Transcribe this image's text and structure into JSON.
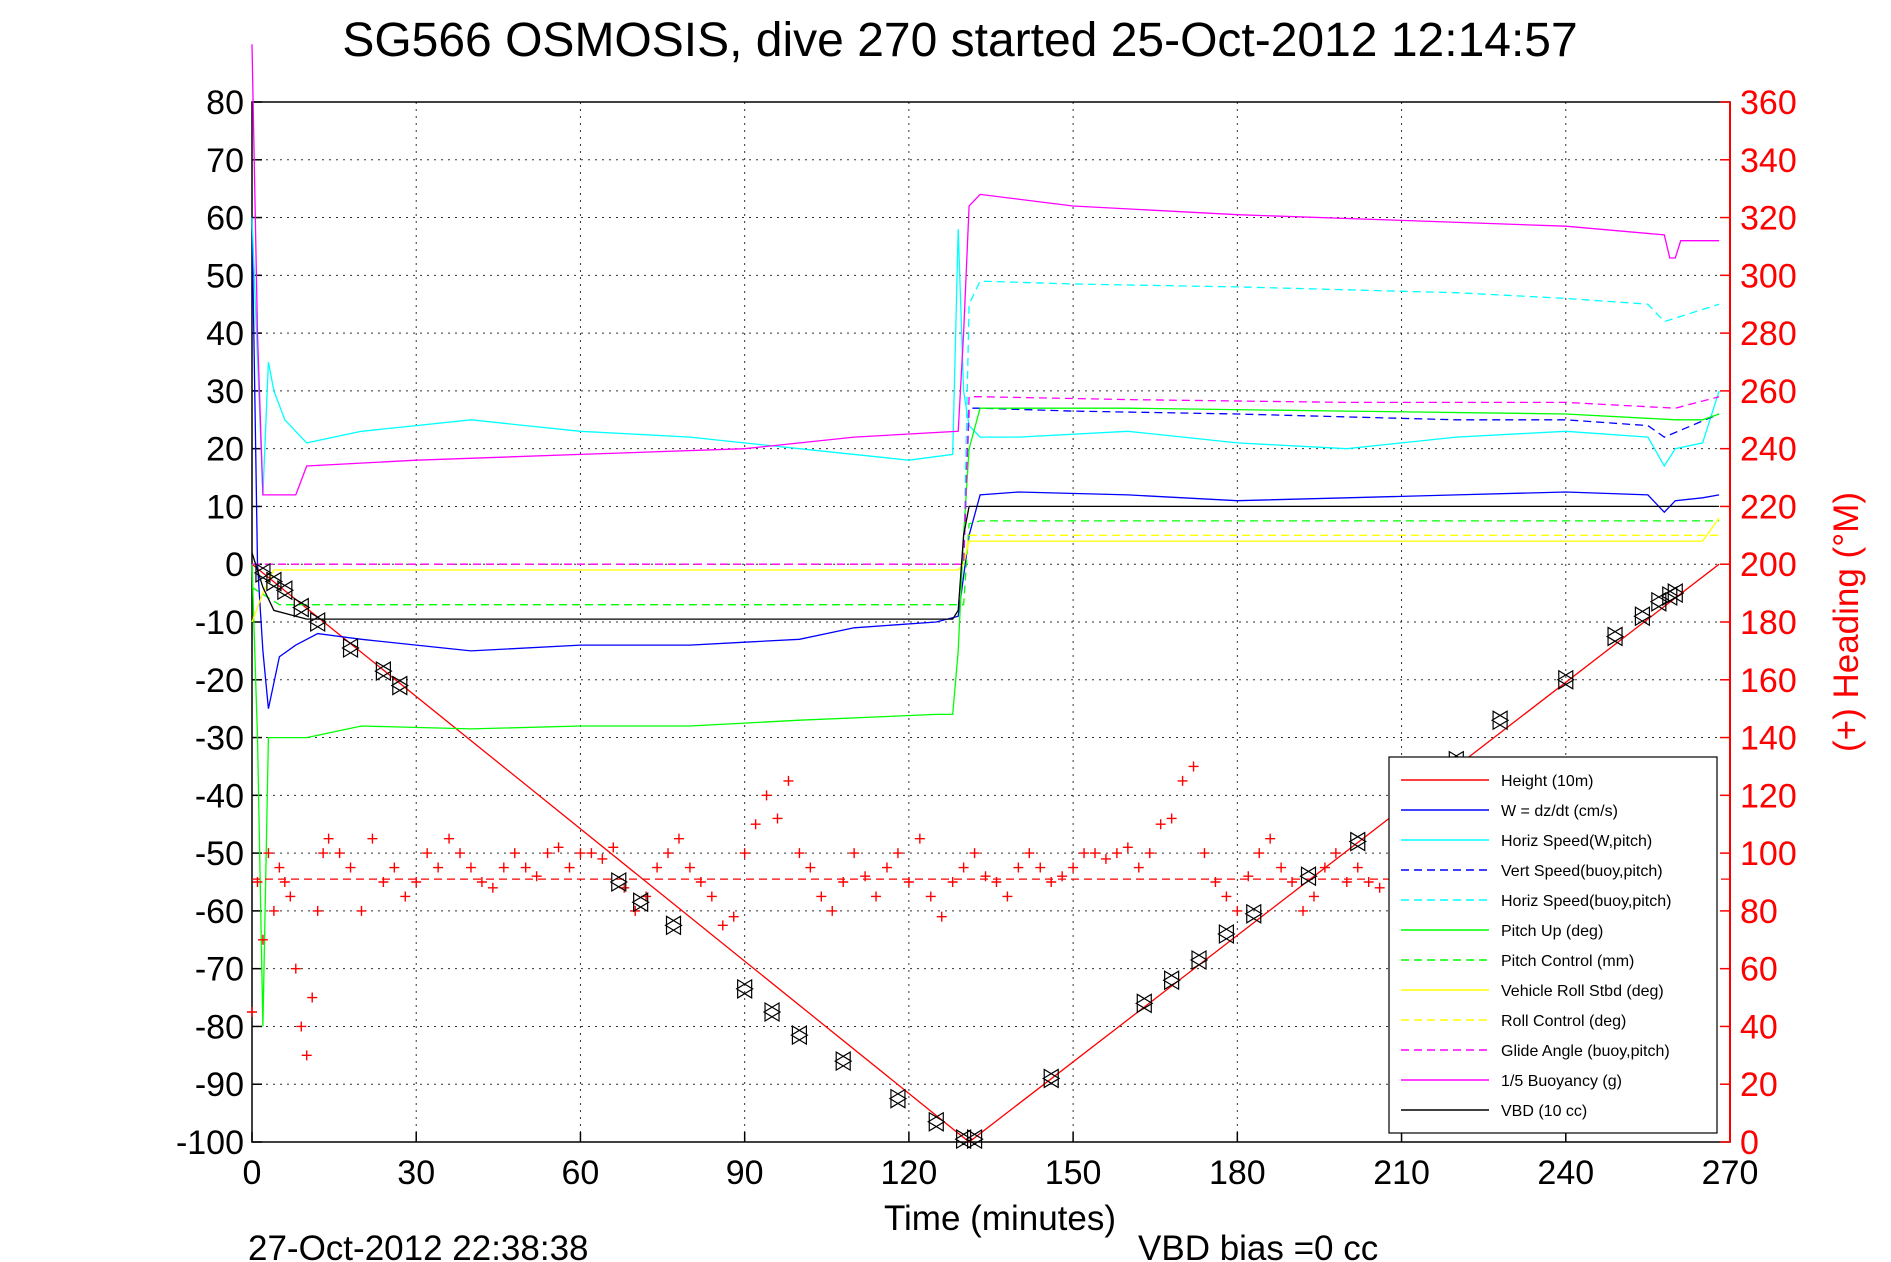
{
  "chart_data": {
    "type": "line",
    "title": "SG566 OSMOSIS, dive 270 started 25-Oct-2012 12:14:57",
    "xlabel": "Time (minutes)",
    "ylabel": "",
    "y2label": "(+) Heading (°M)",
    "xlim": [
      0,
      270
    ],
    "ylim": [
      -100,
      80
    ],
    "y2lim": [
      0,
      360
    ],
    "xticks": [
      "0",
      "30",
      "60",
      "90",
      "120",
      "150",
      "180",
      "210",
      "240",
      "270"
    ],
    "yticks": [
      "80",
      "70",
      "60",
      "50",
      "40",
      "30",
      "20",
      "10",
      "0",
      "-10",
      "-20",
      "-30",
      "-40",
      "-50",
      "-60",
      "-70",
      "-80",
      "-90",
      "-100"
    ],
    "y2ticks": [
      "360",
      "340",
      "320",
      "300",
      "280",
      "260",
      "240",
      "220",
      "200",
      "180",
      "160",
      "140",
      "120",
      "100",
      "80",
      "60",
      "40",
      "20",
      "0"
    ],
    "grid": true,
    "legend_position": "bottom-right",
    "footer_left": "27-Oct-2012 22:38:38",
    "footer_right": "VBD bias =0 cc",
    "series": [
      {
        "name": "Height (10m)",
        "color": "#ff0000",
        "style": "solid",
        "x": [
          0,
          131,
          268
        ],
        "y": [
          0,
          -100,
          0
        ]
      },
      {
        "name": "W = dz/dt (cm/s)",
        "color": "#0000ff",
        "style": "solid",
        "x": [
          0,
          1,
          2,
          3,
          5,
          8,
          12,
          20,
          30,
          40,
          60,
          80,
          90,
          100,
          110,
          125,
          129,
          131,
          133,
          140,
          160,
          180,
          200,
          220,
          240,
          255,
          258,
          260,
          265,
          268
        ],
        "y": [
          60,
          0,
          -15,
          -25,
          -16,
          -14,
          -12,
          -13,
          -14,
          -15,
          -14,
          -14,
          -13.5,
          -13,
          -11,
          -10,
          -9,
          5,
          12,
          12.5,
          12,
          11,
          11.5,
          12,
          12.5,
          12,
          9,
          11,
          11.5,
          12
        ]
      },
      {
        "name": "Horiz Speed(W,pitch)",
        "color": "#00ffff",
        "style": "solid",
        "x": [
          0,
          2,
          3,
          4,
          6,
          10,
          20,
          30,
          40,
          50,
          60,
          80,
          100,
          120,
          128,
          129,
          130,
          131,
          133,
          140,
          160,
          180,
          200,
          220,
          240,
          255,
          258,
          260,
          265,
          268
        ],
        "y": [
          60,
          12,
          35,
          30,
          25,
          21,
          23,
          24,
          25,
          24,
          23,
          22,
          20,
          18,
          19,
          58,
          30,
          24,
          22,
          22,
          23,
          21,
          20,
          22,
          23,
          22,
          17,
          20,
          21,
          30
        ]
      },
      {
        "name": "Vert Speed(buoy,pitch)",
        "color": "#0000ff",
        "style": "dashed",
        "x": [
          0,
          1,
          2,
          130,
          131,
          133,
          150,
          180,
          200,
          220,
          240,
          255,
          258,
          268
        ],
        "y": [
          0,
          0,
          0,
          0,
          27,
          27,
          26.5,
          26,
          25.5,
          25,
          25,
          24,
          22,
          26
        ]
      },
      {
        "name": "Horiz Speed(buoy,pitch)",
        "color": "#00ffff",
        "style": "dashed",
        "x": [
          0,
          130,
          131,
          133,
          150,
          180,
          200,
          220,
          240,
          255,
          258,
          268
        ],
        "y": [
          0,
          0,
          45,
          49,
          48.5,
          48,
          47.5,
          47,
          46,
          45,
          42,
          45
        ]
      },
      {
        "name": "Pitch Up (deg)",
        "color": "#00ff00",
        "style": "solid",
        "x": [
          0,
          1,
          2,
          3,
          5,
          10,
          20,
          40,
          60,
          80,
          100,
          125,
          128,
          129,
          130,
          131,
          133,
          160,
          200,
          240,
          260,
          265,
          268
        ],
        "y": [
          0,
          -30,
          -80,
          -30,
          -30,
          -30,
          -28,
          -28.5,
          -28,
          -28,
          -27,
          -26,
          -26,
          -15,
          5,
          20,
          27,
          27,
          26.5,
          26,
          25,
          25,
          26
        ]
      },
      {
        "name": "Pitch Control (mm)",
        "color": "#00ff00",
        "style": "dashed",
        "x": [
          0,
          5,
          10,
          30,
          60,
          100,
          129,
          130,
          131,
          133,
          160,
          200,
          240,
          268
        ],
        "y": [
          -4,
          -7,
          -7,
          -7,
          -7,
          -7,
          -7,
          -7,
          7,
          7.5,
          7.5,
          7.5,
          7.5,
          7.5
        ]
      },
      {
        "name": "Vehicle Roll Stbd (deg)",
        "color": "#ffff00",
        "style": "solid",
        "x": [
          0,
          2,
          4,
          10,
          40,
          80,
          120,
          129,
          130,
          131,
          133,
          160,
          200,
          240,
          265,
          268
        ],
        "y": [
          -10,
          -5,
          -1,
          -1,
          -1,
          -1,
          -1,
          -1,
          0,
          4,
          4,
          4,
          4,
          4,
          4,
          8
        ]
      },
      {
        "name": "Roll Control (deg)",
        "color": "#ffff00",
        "style": "dashed",
        "x": [
          0,
          10,
          40,
          80,
          129,
          130,
          131,
          133,
          160,
          200,
          240,
          268
        ],
        "y": [
          0,
          0,
          0,
          0,
          0,
          0,
          5,
          5,
          5,
          5,
          5,
          5
        ]
      },
      {
        "name": "Glide Angle (buoy,pitch)",
        "color": "#ff00ff",
        "style": "dashed",
        "x": [
          0,
          130,
          131,
          133,
          160,
          200,
          240,
          260,
          268
        ],
        "y": [
          0,
          0,
          29,
          29,
          28.5,
          28,
          28,
          27,
          29
        ]
      },
      {
        "name": "1/5 Buoyancy (g)",
        "color": "#ff00ff",
        "style": "solid",
        "x": [
          0,
          1,
          2,
          3,
          8,
          10,
          30,
          60,
          90,
          110,
          129,
          130,
          131,
          133,
          150,
          180,
          210,
          240,
          258,
          259,
          260,
          261,
          268
        ],
        "y": [
          90,
          40,
          12,
          12,
          12,
          17,
          18,
          19,
          20,
          22,
          23,
          40,
          62,
          64,
          62,
          60.5,
          59.5,
          58.5,
          57,
          53,
          53,
          56,
          56
        ]
      },
      {
        "name": "VBD (10 cc)",
        "color": "#000000",
        "style": "solid",
        "x": [
          0,
          2,
          4,
          10,
          30,
          60,
          100,
          128,
          129,
          130,
          131,
          133,
          160,
          200,
          240,
          268
        ],
        "y": [
          2,
          -4,
          -8,
          -9.5,
          -9.5,
          -9.5,
          -9.5,
          -9.5,
          -8,
          5,
          10,
          10,
          10,
          10,
          10,
          10
        ]
      }
    ],
    "heading": {
      "name": "Heading",
      "color": "#ff0000",
      "marker": "+",
      "mean": 91,
      "x": [
        0,
        1,
        2,
        3,
        4,
        5,
        6,
        7,
        8,
        9,
        10,
        11,
        12,
        13,
        14,
        16,
        18,
        20,
        22,
        24,
        26,
        28,
        30,
        32,
        34,
        36,
        38,
        40,
        42,
        44,
        46,
        48,
        50,
        52,
        54,
        56,
        58,
        60,
        62,
        64,
        66,
        68,
        70,
        72,
        74,
        76,
        78,
        80,
        82,
        84,
        86,
        88,
        90,
        92,
        94,
        96,
        98,
        100,
        102,
        104,
        106,
        108,
        110,
        112,
        114,
        116,
        118,
        120,
        122,
        124,
        126,
        128,
        130,
        132,
        134,
        136,
        138,
        140,
        142,
        144,
        146,
        148,
        150,
        152,
        154,
        156,
        158,
        160,
        162,
        164,
        166,
        168,
        170,
        172,
        174,
        176,
        178,
        180,
        182,
        184,
        186,
        188,
        190,
        192,
        194,
        196,
        198,
        200,
        202,
        204,
        206
      ],
      "y": [
        45,
        90,
        70,
        100,
        80,
        95,
        90,
        85,
        60,
        40,
        30,
        50,
        80,
        100,
        105,
        100,
        95,
        80,
        105,
        90,
        95,
        85,
        90,
        100,
        95,
        105,
        100,
        95,
        90,
        88,
        95,
        100,
        95,
        92,
        100,
        102,
        95,
        100,
        100,
        98,
        102,
        88,
        80,
        85,
        95,
        100,
        105,
        95,
        90,
        85,
        75,
        78,
        100,
        110,
        120,
        112,
        125,
        100,
        95,
        85,
        80,
        90,
        100,
        92,
        85,
        95,
        100,
        90,
        105,
        85,
        78,
        90,
        95,
        100,
        92,
        90,
        85,
        95,
        100,
        95,
        90,
        92,
        95,
        100,
        100,
        98,
        100,
        102,
        95,
        100,
        110,
        112,
        125,
        130,
        100,
        90,
        85,
        80,
        92,
        100,
        105,
        95,
        90,
        80,
        85,
        95,
        100,
        90,
        95,
        90,
        88
      ]
    },
    "markers": {
      "name": "Height samples",
      "color": "#000000",
      "marker": "triangle",
      "x": [
        2,
        4,
        6,
        9,
        12,
        18,
        24,
        27,
        67,
        71,
        77,
        90,
        95,
        100,
        108,
        118,
        125,
        130,
        132,
        146,
        163,
        168,
        173,
        178,
        183,
        193,
        202,
        220,
        228,
        240,
        249,
        254,
        257,
        259,
        260
      ],
      "y": [
        -1.5,
        -3,
        -4.5,
        -7.5,
        -10,
        -14.5,
        -18.5,
        -21,
        -55,
        -58.5,
        -62.5,
        -73.5,
        -77.5,
        -81.5,
        -86,
        -92.5,
        -96.5,
        -99.5,
        -99.5,
        -89,
        -76,
        -72,
        -68.5,
        -64,
        -60.5,
        -54,
        -48,
        -34,
        -27,
        -20,
        -12.5,
        -9,
        -6.5,
        -5.5,
        -5
      ]
    }
  }
}
